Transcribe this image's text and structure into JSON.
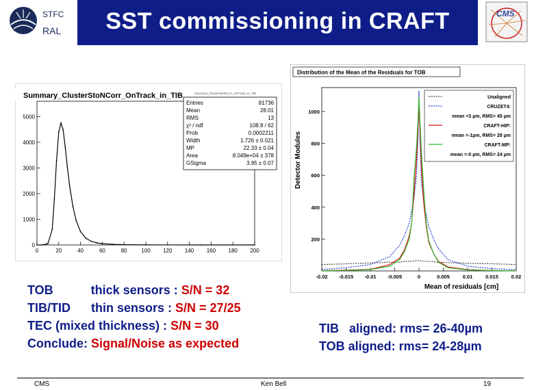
{
  "header": {
    "org_top": "STFC",
    "org_bottom": "RAL",
    "title": "SST commissioning in CRAFT",
    "cms_logo_text": "CMS"
  },
  "left_chart": {
    "title": "Summary_ClusterStoNCorr_OnTrack_in_TIB",
    "tiny_caption": "Summary_ClusterStoNCorr_OnTrack_in_TIB",
    "stats": [
      {
        "label": "Entries",
        "value": "81736"
      },
      {
        "label": "Mean",
        "value": "28.01"
      },
      {
        "label": "RMS",
        "value": "13"
      },
      {
        "label": "χ² / ndf",
        "value": "108.8 / 62"
      },
      {
        "label": "Prob",
        "value": "0.0002211"
      },
      {
        "label": "Width",
        "value": "1.726 ± 0.021"
      },
      {
        "label": "MP",
        "value": "22.33 ± 0.04"
      },
      {
        "label": "Area",
        "value": "8.049e+04 ± 378"
      },
      {
        "label": "GSigma",
        "value": "3.95 ± 0.07"
      }
    ],
    "x_ticks": [
      "0",
      "20",
      "40",
      "60",
      "80",
      "100",
      "120",
      "140",
      "160",
      "180",
      "200"
    ],
    "y_ticks": [
      "0",
      "1000",
      "2000",
      "3000",
      "4000",
      "5000"
    ]
  },
  "right_chart": {
    "title": "Distribution of the Mean of the Residuals for TOB",
    "ylabel": "Detector Modules",
    "xlabel": "Mean of residuals [cm]",
    "x_ticks": [
      "-0.02",
      "-0.015",
      "-0.01",
      "-0.005",
      "0",
      "0.005",
      "0.01",
      "0.015",
      "0.02"
    ],
    "y_ticks": [
      "200",
      "400",
      "600",
      "800",
      "1000"
    ],
    "legend": [
      {
        "name": "Unaligned",
        "color": "#444444",
        "style": "dotted"
      },
      {
        "name": "CRUZET4:",
        "color": "#1f3fd0",
        "style": "dotted"
      },
      {
        "name": "mean =3 µm, RMS= 45 µm",
        "color": "",
        "style": "none"
      },
      {
        "name": "CRAFT-HIP:",
        "color": "#d01010",
        "style": "solid"
      },
      {
        "name": "mean =-1µm, RMS= 28 µm",
        "color": "",
        "style": "none"
      },
      {
        "name": "CRAFT-MP:",
        "color": "#33bb33",
        "style": "solid"
      },
      {
        "name": "mean =-0 µm, RMS= 24 µm",
        "color": "",
        "style": "none"
      }
    ]
  },
  "chart_data": [
    {
      "type": "line",
      "title": "Summary_ClusterStoNCorr_OnTrack_in_TIB",
      "xlabel": "",
      "ylabel": "",
      "xlim": [
        0,
        200
      ],
      "ylim": [
        0,
        5600
      ],
      "x": [
        0,
        5,
        10,
        14,
        16,
        18,
        20,
        22,
        24,
        26,
        28,
        30,
        33,
        36,
        40,
        45,
        50,
        55,
        60,
        70,
        80,
        100,
        120,
        150,
        200
      ],
      "series": [
        {
          "values": [
            0,
            0,
            50,
            600,
            1800,
            3300,
            4400,
            4750,
            4500,
            3800,
            3000,
            2300,
            1500,
            950,
            520,
            260,
            140,
            80,
            50,
            25,
            12,
            5,
            2,
            1,
            0
          ]
        }
      ]
    },
    {
      "type": "line",
      "title": "Distribution of the Mean of the Residuals for TOB",
      "xlabel": "Mean of residuals [cm]",
      "ylabel": "Detector Modules",
      "xlim": [
        -0.02,
        0.02
      ],
      "ylim": [
        0,
        1150
      ],
      "x": [
        -0.02,
        -0.015,
        -0.01,
        -0.006,
        -0.004,
        -0.003,
        -0.002,
        -0.0015,
        -0.001,
        -0.0005,
        -0.0002,
        0,
        0.0002,
        0.0005,
        0.001,
        0.0015,
        0.002,
        0.003,
        0.004,
        0.006,
        0.01,
        0.015,
        0.02
      ],
      "series": [
        {
          "name": "Unaligned",
          "values": [
            40,
            45,
            50,
            55,
            55,
            60,
            60,
            62,
            62,
            65,
            65,
            65,
            65,
            62,
            62,
            60,
            60,
            58,
            55,
            52,
            48,
            45,
            40
          ]
        },
        {
          "name": "CRUZET4:",
          "values": [
            10,
            20,
            40,
            90,
            160,
            220,
            300,
            380,
            460,
            600,
            820,
            1130,
            820,
            560,
            420,
            350,
            280,
            200,
            140,
            70,
            30,
            15,
            8
          ]
        },
        {
          "name": "CRAFT-HIP:",
          "values": [
            2,
            5,
            10,
            40,
            80,
            130,
            220,
            300,
            500,
            700,
            900,
            1050,
            900,
            650,
            420,
            280,
            180,
            110,
            60,
            25,
            8,
            3,
            1
          ]
        },
        {
          "name": "CRAFT-MP:",
          "values": [
            1,
            3,
            8,
            30,
            70,
            120,
            200,
            300,
            600,
            780,
            950,
            1090,
            950,
            750,
            500,
            300,
            190,
            110,
            55,
            20,
            6,
            2,
            1
          ]
        }
      ]
    }
  ],
  "body": {
    "tob_prefix": "TOB           thick sensors : ",
    "tob_value": "S/N = 32",
    "tib_prefix": "TIB/TID      thin sensors : ",
    "tib_value": "S/N = 27/25",
    "tec_prefix": "TEC (mixed thickness) : ",
    "tec_value": "S/N = 30",
    "conclude_prefix": "Conclude: ",
    "conclude_value": "Signal/Noise as expected",
    "tib_aligned": "TIB   aligned: rms= 26-40µm",
    "tob_aligned": "TOB aligned: rms= 24-28µm"
  },
  "footer": {
    "left": "CMS",
    "center": "Ken Bell",
    "page": "19"
  }
}
